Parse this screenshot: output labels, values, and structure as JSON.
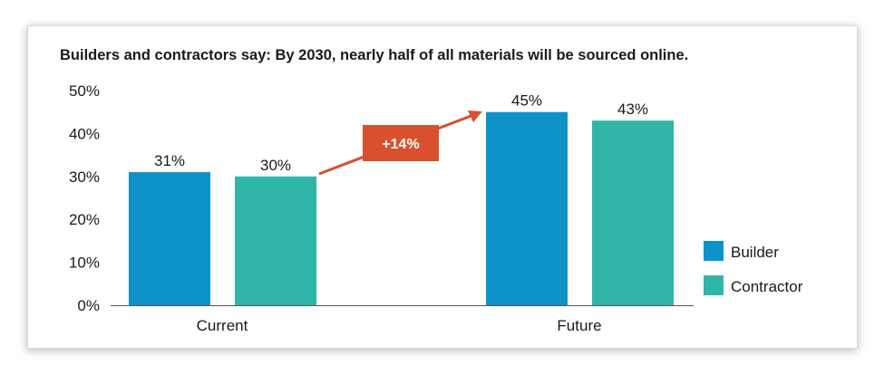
{
  "chart_data": {
    "type": "bar",
    "title": "Builders and contractors say:  By 2030, nearly half of all materials will be sourced online.",
    "categories": [
      "Current",
      "Future"
    ],
    "series": [
      {
        "name": "Builder",
        "values": [
          31,
          45
        ],
        "color": "#0e93c8"
      },
      {
        "name": "Contractor",
        "values": [
          30,
          43
        ],
        "color": "#2fb6a9"
      }
    ],
    "data_labels": [
      [
        "31%",
        "45%"
      ],
      [
        "30%",
        "43%"
      ]
    ],
    "ylim": [
      0,
      50
    ],
    "yticks": [
      0,
      10,
      20,
      30,
      40,
      50
    ],
    "ytick_labels": [
      "0%",
      "10%",
      "20%",
      "30%",
      "40%",
      "50%"
    ],
    "xlabel": "",
    "ylabel": "",
    "legend_position": "bottom-right",
    "annotation": {
      "text": "+14%",
      "color": "#d9502e"
    }
  }
}
